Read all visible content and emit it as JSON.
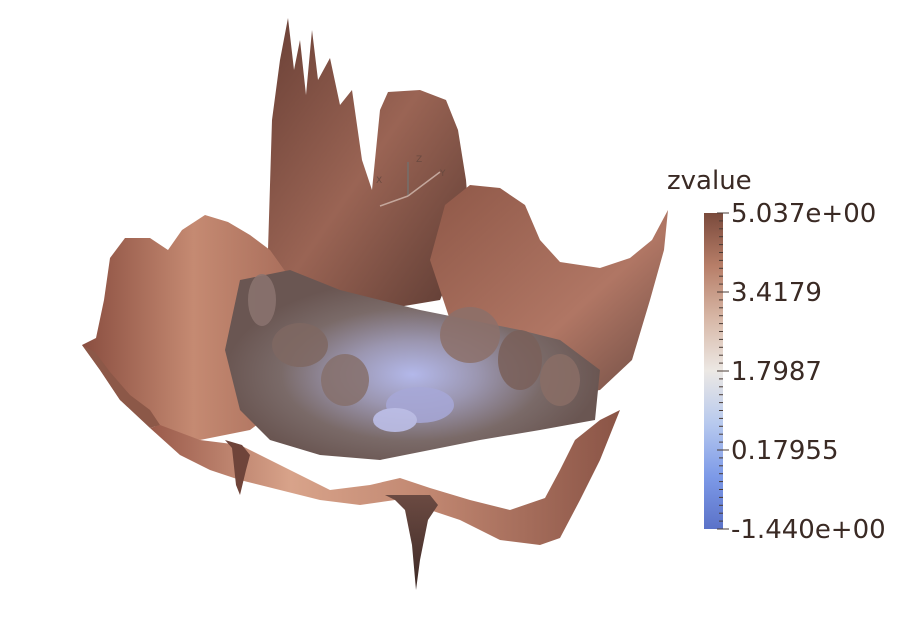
{
  "chart_data": {
    "type": "heatmap",
    "render_style": "3d-surface",
    "scalar_name": "zvalue",
    "color_range": [
      -1.44,
      5.037
    ],
    "colormap": "cool-to-warm",
    "colormap_stops": [
      "#5b72c8",
      "#7d9ae8",
      "#b7c9ee",
      "#ece8e4",
      "#d7b7a6",
      "#b77e68",
      "#7a4a3c"
    ],
    "legend": {
      "title": "zvalue",
      "labels": [
        "5.037e+00",
        "3.4179",
        "1.7987",
        "0.17955",
        "-1.440e+00"
      ],
      "values": [
        5.037,
        3.4179,
        1.7987,
        0.17955,
        -1.44
      ],
      "placement": "right"
    },
    "orientation_axes": {
      "labels": [
        "X",
        "Y",
        "Z"
      ]
    },
    "surface_colors": {
      "deep": "#5e3a32",
      "mid": "#a56b58",
      "light": "#d19a83",
      "low": "#a8aee6"
    }
  }
}
